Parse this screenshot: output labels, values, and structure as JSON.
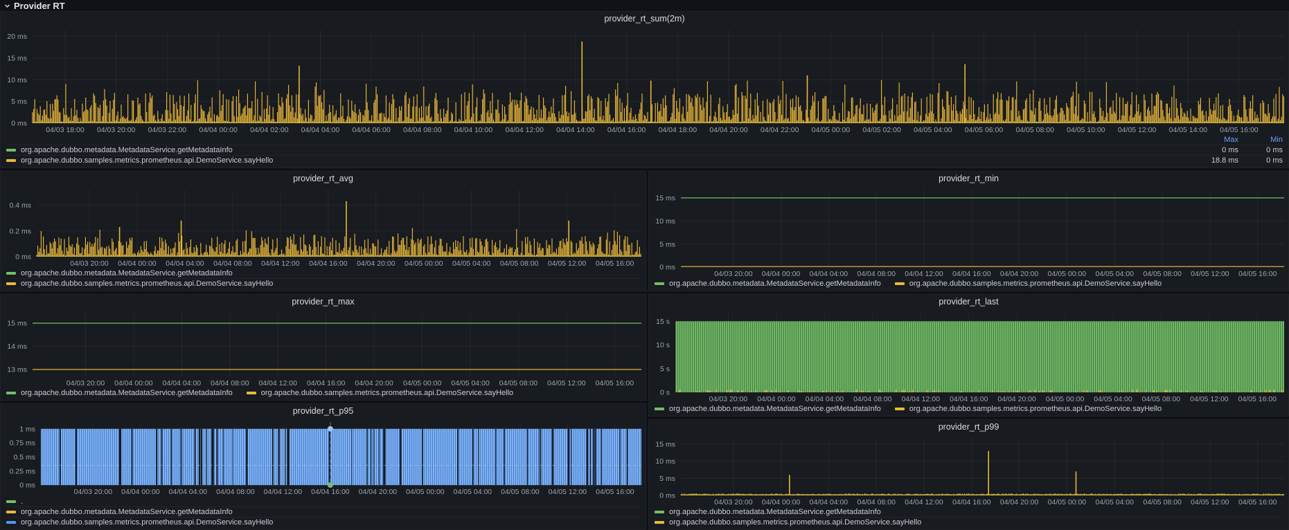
{
  "header": {
    "title": "Provider RT"
  },
  "colors": {
    "green": "#73BF69",
    "yellow": "#EAB839",
    "blue": "#5794F2",
    "legend_header": "#6E9FFF",
    "panel_bg": "#181b1f",
    "page_bg": "#111217"
  },
  "chart_data": [
    {
      "id": "provider_rt_sum",
      "title": "provider_rt_sum(2m)",
      "type": "bar",
      "unit": "ms",
      "ylim": [
        0,
        21.5
      ],
      "axis_width": 38,
      "xfrac": [
        0.026,
        0.964
      ],
      "yticks": [
        {
          "v": 20,
          "label": "20 ms"
        },
        {
          "v": 15,
          "label": "15 ms"
        },
        {
          "v": 10,
          "label": "10 ms"
        },
        {
          "v": 5,
          "label": "5 ms"
        },
        {
          "v": 0,
          "label": "0 ms"
        }
      ],
      "xticks": [
        "04/03 18:00",
        "04/03 20:00",
        "04/03 22:00",
        "04/04 00:00",
        "04/04 02:00",
        "04/04 04:00",
        "04/04 06:00",
        "04/04 08:00",
        "04/04 10:00",
        "04/04 12:00",
        "04/04 14:00",
        "04/04 16:00",
        "04/04 18:00",
        "04/04 20:00",
        "04/04 22:00",
        "04/05 00:00",
        "04/05 02:00",
        "04/05 04:00",
        "04/05 06:00",
        "04/05 08:00",
        "04/05 10:00",
        "04/05 12:00",
        "04/05 14:00",
        "04/05 16:00"
      ],
      "series": [
        {
          "name": "org.apache.dubbo.metadata.MetadataService.getMetadataInfo",
          "color": "#73BF69",
          "render": "flat",
          "value": 0
        },
        {
          "name": "org.apache.dubbo.samples.metrics.prometheus.api.DemoService.sayHello",
          "color": "#EAB839",
          "render": "noise",
          "seed": 11,
          "base": [
            0.3,
            7.2
          ],
          "pow": 1.7,
          "tall_p": 0.05,
          "spikes": [
            {
              "frac": 0.213,
              "v": 13.2
            },
            {
              "frac": 0.439,
              "v": 18.8
            },
            {
              "frac": 0.494,
              "v": 9.8
            },
            {
              "frac": 0.619,
              "v": 11.0
            },
            {
              "frac": 0.745,
              "v": 13.6
            }
          ]
        }
      ],
      "legend": {
        "type": "table",
        "columns": [
          "Max",
          "Min"
        ],
        "rows": [
          {
            "color": "#73BF69",
            "label": "org.apache.dubbo.metadata.MetadataService.getMetadataInfo",
            "values": [
              "0 ms",
              "0 ms"
            ]
          },
          {
            "color": "#EAB839",
            "label": "org.apache.dubbo.samples.metrics.prometheus.api.DemoService.sayHello",
            "values": [
              "18.8 ms",
              "0 ms"
            ]
          }
        ]
      }
    },
    {
      "id": "provider_rt_avg",
      "title": "provider_rt_avg",
      "type": "bar",
      "unit": "ms",
      "ylim": [
        0,
        0.52
      ],
      "axis_width": 44,
      "xfrac": [
        0.087,
        0.956
      ],
      "yticks": [
        {
          "v": 0.4,
          "label": "0.4 ms"
        },
        {
          "v": 0.2,
          "label": "0.2 ms"
        },
        {
          "v": 0,
          "label": "0 ms"
        }
      ],
      "xticks": [
        "04/03 20:00",
        "04/04 00:00",
        "04/04 04:00",
        "04/04 08:00",
        "04/04 12:00",
        "04/04 16:00",
        "04/04 20:00",
        "04/05 00:00",
        "04/05 04:00",
        "04/05 08:00",
        "04/05 12:00",
        "04/05 16:00"
      ],
      "series": [
        {
          "name": "org.apache.dubbo.metadata.MetadataService.getMetadataInfo",
          "color": "#73BF69",
          "render": "flat",
          "value": 0
        },
        {
          "name": "org.apache.dubbo.samples.metrics.prometheus.api.DemoService.sayHello",
          "color": "#EAB839",
          "render": "noise",
          "seed": 23,
          "base": [
            0.01,
            0.16
          ],
          "pow": 1.5,
          "tall_p": 0.04,
          "spikes": [
            {
              "frac": 0.137,
              "v": 0.23
            },
            {
              "frac": 0.239,
              "v": 0.28
            },
            {
              "frac": 0.512,
              "v": 0.43
            },
            {
              "frac": 0.88,
              "v": 0.28
            }
          ]
        }
      ],
      "legend": {
        "type": "rows",
        "rows": [
          {
            "color": "#73BF69",
            "label": "org.apache.dubbo.metadata.MetadataService.getMetadataInfo"
          },
          {
            "color": "#EAB839",
            "label": "org.apache.dubbo.samples.metrics.prometheus.api.DemoService.sayHello"
          }
        ]
      }
    },
    {
      "id": "provider_rt_min",
      "title": "provider_rt_min",
      "type": "line",
      "unit": "ms",
      "ylim": [
        0,
        16.8
      ],
      "axis_width": 38,
      "xfrac": [
        0.087,
        0.956
      ],
      "yticks": [
        {
          "v": 15,
          "label": "15 ms"
        },
        {
          "v": 10,
          "label": "10 ms"
        },
        {
          "v": 5,
          "label": "5 ms"
        },
        {
          "v": 0,
          "label": "0 ms"
        }
      ],
      "xticks": [
        "04/03 20:00",
        "04/04 00:00",
        "04/04 04:00",
        "04/04 08:00",
        "04/04 12:00",
        "04/04 16:00",
        "04/04 20:00",
        "04/05 00:00",
        "04/05 04:00",
        "04/05 08:00",
        "04/05 12:00",
        "04/05 16:00"
      ],
      "series": [
        {
          "name": "org.apache.dubbo.metadata.MetadataService.getMetadataInfo",
          "color": "#73BF69",
          "render": "flat",
          "value": 15
        },
        {
          "name": "org.apache.dubbo.samples.metrics.prometheus.api.DemoService.sayHello",
          "color": "#EAB839",
          "render": "flat",
          "value": 0
        }
      ],
      "legend": {
        "type": "inline",
        "items": [
          {
            "color": "#73BF69",
            "label": "org.apache.dubbo.metadata.MetadataService.getMetadataInfo"
          },
          {
            "color": "#EAB839",
            "label": "org.apache.dubbo.samples.metrics.prometheus.api.DemoService.sayHello"
          }
        ]
      }
    },
    {
      "id": "provider_rt_max",
      "title": "provider_rt_max",
      "type": "line",
      "unit": "ms",
      "ylim": [
        12.7,
        15.45
      ],
      "axis_width": 38,
      "xfrac": [
        0.087,
        0.956
      ],
      "yticks": [
        {
          "v": 15,
          "label": "15 ms"
        },
        {
          "v": 14,
          "label": "14 ms"
        },
        {
          "v": 13,
          "label": "13 ms"
        }
      ],
      "xticks": [
        "04/03 20:00",
        "04/04 00:00",
        "04/04 04:00",
        "04/04 08:00",
        "04/04 12:00",
        "04/04 16:00",
        "04/04 20:00",
        "04/05 00:00",
        "04/05 04:00",
        "04/05 08:00",
        "04/05 12:00",
        "04/05 16:00"
      ],
      "series": [
        {
          "name": "org.apache.dubbo.metadata.MetadataService.getMetadataInfo",
          "color": "#73BF69",
          "render": "flat",
          "value": 15
        },
        {
          "name": "org.apache.dubbo.samples.metrics.prometheus.api.DemoService.sayHello",
          "color": "#EAB839",
          "render": "flat",
          "value": 13
        }
      ],
      "legend": {
        "type": "inline",
        "items": [
          {
            "color": "#73BF69",
            "label": "org.apache.dubbo.metadata.MetadataService.getMetadataInfo"
          },
          {
            "color": "#EAB839",
            "label": "org.apache.dubbo.samples.metrics.prometheus.api.DemoService.sayHello"
          }
        ]
      }
    },
    {
      "id": "provider_rt_last",
      "title": "provider_rt_last",
      "type": "bar",
      "unit": "s",
      "ylim": [
        0,
        16.8
      ],
      "axis_width": 30,
      "xfrac": [
        0.087,
        0.956
      ],
      "yticks": [
        {
          "v": 15,
          "label": "15 s"
        },
        {
          "v": 10,
          "label": "10 s"
        },
        {
          "v": 5,
          "label": "5 s"
        },
        {
          "v": 0,
          "label": "0 s"
        }
      ],
      "xticks": [
        "04/03 20:00",
        "04/04 00:00",
        "04/04 04:00",
        "04/04 08:00",
        "04/04 12:00",
        "04/04 16:00",
        "04/04 20:00",
        "04/05 00:00",
        "04/05 04:00",
        "04/05 08:00",
        "04/05 12:00",
        "04/05 16:00"
      ],
      "series": [
        {
          "name": "org.apache.dubbo.metadata.MetadataService.getMetadataInfo",
          "color": "#73BF69",
          "render": "area",
          "value": 15
        },
        {
          "name": "org.apache.dubbo.samples.metrics.prometheus.api.DemoService.sayHello",
          "color": "#EAB839",
          "render": "bticks",
          "seed": 31,
          "density": 0.3,
          "hmin": 0.15,
          "hmax": 0.6
        }
      ],
      "legend": {
        "type": "inline",
        "items": [
          {
            "color": "#73BF69",
            "label": "org.apache.dubbo.metadata.MetadataService.getMetadataInfo"
          },
          {
            "color": "#EAB839",
            "label": "org.apache.dubbo.samples.metrics.prometheus.api.DemoService.sayHello"
          }
        ]
      }
    },
    {
      "id": "provider_rt_p95",
      "title": "provider_rt_p95",
      "type": "bar",
      "unit": "ms",
      "ylim": [
        0,
        1.12
      ],
      "axis_width": 50,
      "xfrac": [
        0.087,
        0.956
      ],
      "yticks": [
        {
          "v": 1,
          "label": "1 ms"
        },
        {
          "v": 0.75,
          "label": "0.75 ms"
        },
        {
          "v": 0.5,
          "label": "0.5 ms"
        },
        {
          "v": 0.25,
          "label": "0.25 ms"
        },
        {
          "v": 0,
          "label": "0 ms"
        }
      ],
      "xticks": [
        "04/03 20:00",
        "04/04 00:00",
        "04/04 04:00",
        "04/04 08:00",
        "04/04 12:00",
        "04/04 16:00",
        "04/04 20:00",
        "04/05 00:00",
        "04/05 04:00",
        "04/05 08:00",
        "04/05 12:00",
        "04/05 16:00"
      ],
      "series": [
        {
          "name": "org.apache.dubbo.metadata.MetadataService.getMetadataInfo",
          "color": "#EAB839",
          "render": "flat",
          "value": 0
        },
        {
          "name": "org.apache.dubbo.samples.metrics.prometheus.api.DemoService.sayHello",
          "color": "#7EB2F2",
          "render": "pfill",
          "value": 1,
          "seed": 41,
          "gap_count": 55,
          "big_gaps": [
            0.13,
            0.41,
            0.57
          ]
        }
      ],
      "crosshair": {
        "hline_v": 0.35,
        "vline_frac": 0.482,
        "dot_bottom_color": "#73BF69",
        "dot_top_color": "#9ec3f7"
      },
      "legend": {
        "type": "rows",
        "rows": [
          {
            "color": "#73BF69",
            "label": "."
          },
          {
            "color": "#EAB839",
            "label": "org.apache.dubbo.metadata.MetadataService.getMetadataInfo"
          },
          {
            "color": "#5794F2",
            "label": "org.apache.dubbo.samples.metrics.prometheus.api.DemoService.sayHello"
          }
        ]
      }
    },
    {
      "id": "provider_rt_p99",
      "title": "provider_rt_p99",
      "type": "bar",
      "unit": "ms",
      "ylim": [
        0,
        16.8
      ],
      "axis_width": 38,
      "xfrac": [
        0.087,
        0.956
      ],
      "yticks": [
        {
          "v": 15,
          "label": "15 ms"
        },
        {
          "v": 10,
          "label": "10 ms"
        },
        {
          "v": 5,
          "label": "5 ms"
        },
        {
          "v": 0,
          "label": "0 ms"
        }
      ],
      "xticks": [
        "04/03 20:00",
        "04/04 00:00",
        "04/04 04:00",
        "04/04 08:00",
        "04/04 12:00",
        "04/04 16:00",
        "04/04 20:00",
        "04/05 00:00",
        "04/05 04:00",
        "04/05 08:00",
        "04/05 12:00",
        "04/05 16:00"
      ],
      "series": [
        {
          "name": "org.apache.dubbo.metadata.MetadataService.getMetadataInfo",
          "color": "#73BF69",
          "render": "flat",
          "value": 0
        },
        {
          "name": "org.apache.dubbo.samples.metrics.prometheus.api.DemoService.sayHello",
          "color": "#EAB839",
          "render": "noise",
          "seed": 53,
          "base": [
            0.25,
            0.55
          ],
          "pow": 1,
          "tall_p": 0,
          "spikes": [
            {
              "frac": 0.18,
              "v": 6.0
            },
            {
              "frac": 0.51,
              "v": 13.0
            },
            {
              "frac": 0.655,
              "v": 7.0
            }
          ]
        }
      ],
      "legend": {
        "type": "rows",
        "rows": [
          {
            "color": "#73BF69",
            "label": "org.apache.dubbo.metadata.MetadataService.getMetadataInfo"
          },
          {
            "color": "#EAB839",
            "label": "org.apache.dubbo.samples.metrics.prometheus.api.DemoService.sayHello"
          }
        ]
      }
    }
  ]
}
